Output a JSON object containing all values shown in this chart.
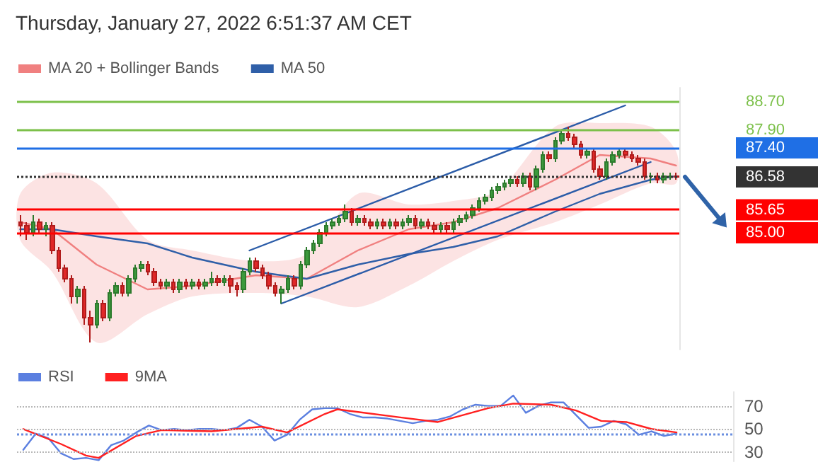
{
  "chart_data": [
    {
      "type": "candlestick",
      "title": "Thursday, January 27, 2022 6:51:37 AM CET",
      "categories": [
        null,
        null,
        null,
        null,
        null,
        null,
        null,
        null,
        null,
        null,
        null,
        null,
        null,
        null,
        null,
        null,
        null,
        null,
        null,
        null,
        null,
        null,
        null,
        null,
        null,
        null,
        null,
        null,
        null,
        null,
        null,
        null,
        null,
        null,
        null,
        null,
        null,
        null,
        null,
        null,
        null,
        null,
        null,
        null,
        null,
        null,
        null,
        null,
        null,
        null,
        null,
        null,
        null,
        null,
        null,
        null,
        null,
        null,
        null,
        null,
        null,
        null,
        null,
        null,
        null,
        null,
        null,
        null,
        null,
        null,
        null,
        null,
        null,
        null,
        null,
        null,
        null,
        null,
        null,
        null,
        null,
        null,
        null,
        null,
        null,
        null,
        null,
        null,
        null,
        null,
        null,
        null,
        null,
        null,
        null,
        null,
        null,
        null,
        null,
        null,
        null,
        null,
        null,
        null
      ],
      "ohlc": [
        [
          85.3,
          85.5,
          84.9,
          85.2
        ],
        [
          85.2,
          85.3,
          84.8,
          85.0
        ],
        [
          85.0,
          85.5,
          84.9,
          85.3
        ],
        [
          85.3,
          85.4,
          85.0,
          85.1
        ],
        [
          85.1,
          85.3,
          84.9,
          85.2
        ],
        [
          85.2,
          85.3,
          84.4,
          84.5
        ],
        [
          84.5,
          84.6,
          83.9,
          84.0
        ],
        [
          84.0,
          84.1,
          83.6,
          83.7
        ],
        [
          83.7,
          83.8,
          83.0,
          83.2
        ],
        [
          83.2,
          83.5,
          83.0,
          83.4
        ],
        [
          83.4,
          83.5,
          82.4,
          82.6
        ],
        [
          82.6,
          82.8,
          81.9,
          82.4
        ],
        [
          82.4,
          83.1,
          82.3,
          83.0
        ],
        [
          83.0,
          83.1,
          82.5,
          82.6
        ],
        [
          82.6,
          83.4,
          82.5,
          83.3
        ],
        [
          83.3,
          83.6,
          83.2,
          83.5
        ],
        [
          83.5,
          83.6,
          83.2,
          83.3
        ],
        [
          83.3,
          83.8,
          83.2,
          83.7
        ],
        [
          83.7,
          84.1,
          83.6,
          84.0
        ],
        [
          84.0,
          84.2,
          83.9,
          84.1
        ],
        [
          84.1,
          84.2,
          83.8,
          83.9
        ],
        [
          83.9,
          84.0,
          83.5,
          83.6
        ],
        [
          83.6,
          83.7,
          83.4,
          83.5
        ],
        [
          83.5,
          83.7,
          83.4,
          83.6
        ],
        [
          83.6,
          83.7,
          83.3,
          83.4
        ],
        [
          83.4,
          83.7,
          83.3,
          83.6
        ],
        [
          83.6,
          83.7,
          83.4,
          83.5
        ],
        [
          83.5,
          83.7,
          83.4,
          83.6
        ],
        [
          83.6,
          83.7,
          83.4,
          83.5
        ],
        [
          83.5,
          83.7,
          83.4,
          83.6
        ],
        [
          83.6,
          83.9,
          83.5,
          83.7
        ],
        [
          83.7,
          83.8,
          83.5,
          83.6
        ],
        [
          83.6,
          83.8,
          83.5,
          83.7
        ],
        [
          83.7,
          83.8,
          83.3,
          83.5
        ],
        [
          83.5,
          83.6,
          83.2,
          83.4
        ],
        [
          83.4,
          84.0,
          83.3,
          83.9
        ],
        [
          83.9,
          84.3,
          83.8,
          84.2
        ],
        [
          84.2,
          84.3,
          83.9,
          84.0
        ],
        [
          84.0,
          84.1,
          83.7,
          83.8
        ],
        [
          83.8,
          83.9,
          83.4,
          83.5
        ],
        [
          83.5,
          83.6,
          83.2,
          83.3
        ],
        [
          83.3,
          83.5,
          83.0,
          83.4
        ],
        [
          83.4,
          83.8,
          83.3,
          83.7
        ],
        [
          83.7,
          83.8,
          83.4,
          83.5
        ],
        [
          83.5,
          84.2,
          83.4,
          84.1
        ],
        [
          84.1,
          84.6,
          84.0,
          84.5
        ],
        [
          84.5,
          84.8,
          84.4,
          84.7
        ],
        [
          84.7,
          85.1,
          84.6,
          85.0
        ],
        [
          85.0,
          85.3,
          84.9,
          85.2
        ],
        [
          85.2,
          85.4,
          85.1,
          85.3
        ],
        [
          85.3,
          85.5,
          85.2,
          85.4
        ],
        [
          85.4,
          85.8,
          85.3,
          85.6
        ],
        [
          85.6,
          85.7,
          85.2,
          85.3
        ],
        [
          85.3,
          85.5,
          85.2,
          85.4
        ],
        [
          85.4,
          85.5,
          85.2,
          85.3
        ],
        [
          85.3,
          85.4,
          85.1,
          85.2
        ],
        [
          85.2,
          85.4,
          85.1,
          85.3
        ],
        [
          85.3,
          85.4,
          85.1,
          85.2
        ],
        [
          85.2,
          85.4,
          85.1,
          85.3
        ],
        [
          85.3,
          85.4,
          85.1,
          85.2
        ],
        [
          85.2,
          85.4,
          85.1,
          85.3
        ],
        [
          85.3,
          85.5,
          85.2,
          85.4
        ],
        [
          85.4,
          85.5,
          85.1,
          85.2
        ],
        [
          85.2,
          85.4,
          85.1,
          85.3
        ],
        [
          85.3,
          85.4,
          85.1,
          85.2
        ],
        [
          85.2,
          85.3,
          85.0,
          85.1
        ],
        [
          85.1,
          85.3,
          85.0,
          85.2
        ],
        [
          85.2,
          85.3,
          85.0,
          85.1
        ],
        [
          85.1,
          85.4,
          85.0,
          85.3
        ],
        [
          85.3,
          85.5,
          85.2,
          85.4
        ],
        [
          85.4,
          85.6,
          85.3,
          85.5
        ],
        [
          85.5,
          85.8,
          85.4,
          85.7
        ],
        [
          85.7,
          86.0,
          85.6,
          85.9
        ],
        [
          85.9,
          86.1,
          85.8,
          86.0
        ],
        [
          86.0,
          86.3,
          85.9,
          86.2
        ],
        [
          86.2,
          86.4,
          86.1,
          86.3
        ],
        [
          86.3,
          86.5,
          86.2,
          86.4
        ],
        [
          86.4,
          86.6,
          86.3,
          86.5
        ],
        [
          86.5,
          86.6,
          86.3,
          86.4
        ],
        [
          86.4,
          86.7,
          86.3,
          86.6
        ],
        [
          86.6,
          86.7,
          86.2,
          86.3
        ],
        [
          86.3,
          86.9,
          86.2,
          86.8
        ],
        [
          86.8,
          87.3,
          86.7,
          87.2
        ],
        [
          87.2,
          87.3,
          87.0,
          87.1
        ],
        [
          87.1,
          87.7,
          87.0,
          87.6
        ],
        [
          87.6,
          87.9,
          87.5,
          87.8
        ],
        [
          87.8,
          88.0,
          87.6,
          87.7
        ],
        [
          87.7,
          87.8,
          87.4,
          87.5
        ],
        [
          87.5,
          87.6,
          87.1,
          87.2
        ],
        [
          87.2,
          87.4,
          87.1,
          87.3
        ],
        [
          87.3,
          87.4,
          86.7,
          86.8
        ],
        [
          86.8,
          86.9,
          86.5,
          86.6
        ],
        [
          86.6,
          87.1,
          86.5,
          87.0
        ],
        [
          87.0,
          87.3,
          86.9,
          87.2
        ],
        [
          87.2,
          87.4,
          87.1,
          87.3
        ],
        [
          87.3,
          87.4,
          87.1,
          87.2
        ],
        [
          87.2,
          87.3,
          87.0,
          87.1
        ],
        [
          87.1,
          87.2,
          86.9,
          87.0
        ],
        [
          87.0,
          87.1,
          86.5,
          86.6
        ],
        [
          86.6,
          86.7,
          86.4,
          86.6
        ],
        [
          86.6,
          86.7,
          86.4,
          86.5
        ],
        [
          86.5,
          86.7,
          86.4,
          86.6
        ],
        [
          86.6,
          86.7,
          86.5,
          86.6
        ],
        [
          86.6,
          86.7,
          86.5,
          86.58
        ]
      ],
      "series": [
        {
          "type": "line",
          "name": "MA 20 + Bollinger Bands",
          "color": "#f08080",
          "values": [
            85.3,
            null,
            null,
            null,
            null,
            85.1,
            null,
            null,
            null,
            null,
            null,
            null,
            84.1,
            null,
            null,
            null,
            null,
            null,
            null,
            null,
            83.4,
            null,
            null,
            null,
            null,
            null,
            null,
            83.5,
            null,
            null,
            null,
            null,
            null,
            null,
            null,
            null,
            null,
            83.8,
            null,
            null,
            null,
            null,
            null,
            null,
            null,
            83.7,
            null,
            null,
            null,
            null,
            null,
            null,
            null,
            84.5,
            null,
            null,
            null,
            null,
            null,
            null,
            null,
            85.1,
            null,
            null,
            null,
            null,
            null,
            null,
            85.3,
            null,
            null,
            null,
            null,
            null,
            null,
            85.7,
            null,
            null,
            null,
            null,
            null,
            null,
            null,
            null,
            86.5,
            null,
            null,
            null,
            null,
            null,
            null,
            87.2,
            null,
            null,
            null,
            null,
            null,
            null,
            null,
            87.1,
            null,
            null,
            null,
            86.9
          ],
          "upper": [
            86.1,
            null,
            null,
            null,
            null,
            86.7,
            null,
            null,
            null,
            null,
            null,
            null,
            86.4,
            null,
            null,
            null,
            null,
            null,
            null,
            null,
            84.8,
            null,
            null,
            null,
            null,
            null,
            null,
            84.5,
            null,
            null,
            null,
            null,
            null,
            null,
            null,
            null,
            null,
            84.2,
            null,
            null,
            null,
            null,
            null,
            null,
            null,
            84.4,
            null,
            null,
            null,
            null,
            null,
            null,
            null,
            86.1,
            null,
            null,
            null,
            null,
            null,
            null,
            null,
            85.8,
            null,
            null,
            null,
            null,
            null,
            null,
            85.9,
            null,
            null,
            null,
            null,
            null,
            null,
            86.2,
            null,
            null,
            null,
            null,
            null,
            null,
            null,
            null,
            88.0,
            null,
            null,
            null,
            null,
            null,
            null,
            88.1,
            null,
            null,
            null,
            null,
            null,
            null,
            null,
            88.0,
            null,
            null,
            null,
            87.3
          ],
          "lower": [
            84.8,
            null,
            null,
            null,
            null,
            83.9,
            null,
            null,
            null,
            null,
            null,
            null,
            81.9,
            null,
            null,
            null,
            null,
            null,
            null,
            null,
            82.7,
            null,
            null,
            null,
            null,
            null,
            null,
            83.2,
            null,
            null,
            null,
            null,
            null,
            null,
            null,
            null,
            null,
            83.3,
            null,
            null,
            null,
            null,
            null,
            null,
            null,
            83.2,
            null,
            null,
            null,
            null,
            null,
            null,
            null,
            82.9,
            null,
            null,
            null,
            null,
            null,
            null,
            null,
            83.5,
            null,
            null,
            null,
            null,
            null,
            null,
            84.2,
            null,
            null,
            null,
            null,
            null,
            null,
            84.8,
            null,
            null,
            null,
            null,
            null,
            null,
            null,
            null,
            85.3,
            null,
            null,
            null,
            null,
            null,
            null,
            85.8,
            null,
            null,
            null,
            null,
            null,
            null,
            null,
            86.4,
            null,
            null,
            null,
            86.4
          ]
        },
        {
          "type": "line",
          "name": "MA 50",
          "color": "#2f5fa8",
          "values": [
            85.1,
            null,
            null,
            null,
            null,
            85.1,
            null,
            null,
            null,
            null,
            null,
            null,
            84.9,
            null,
            null,
            null,
            null,
            null,
            null,
            null,
            84.7,
            null,
            null,
            null,
            null,
            null,
            null,
            84.3,
            null,
            null,
            null,
            null,
            null,
            null,
            null,
            null,
            null,
            83.9,
            null,
            null,
            null,
            null,
            null,
            null,
            null,
            83.7,
            null,
            null,
            null,
            null,
            null,
            null,
            null,
            84.1,
            null,
            null,
            null,
            null,
            null,
            null,
            null,
            84.4,
            null,
            null,
            null,
            null,
            null,
            null,
            84.6,
            null,
            null,
            null,
            null,
            null,
            null,
            84.9,
            null,
            null,
            null,
            null,
            null,
            null,
            null,
            null,
            85.6,
            null,
            null,
            null,
            null,
            null,
            null,
            86.1,
            null,
            null,
            null,
            null,
            null,
            null,
            null,
            86.5,
            null,
            null,
            null,
            86.6
          ]
        },
        {
          "type": "line",
          "color": "#2b5ca8",
          "values": [
            null,
            null,
            null,
            null,
            null,
            null,
            null,
            null,
            null,
            null,
            null,
            null,
            null,
            null,
            null,
            null,
            null,
            null,
            null,
            null,
            null,
            null,
            null,
            null,
            null,
            null,
            null,
            null,
            null,
            null,
            null,
            null,
            null,
            null,
            null,
            null,
            84.5,
            null,
            null,
            null,
            null,
            null,
            null,
            null,
            null,
            null,
            null,
            null,
            null,
            null,
            null,
            null,
            null,
            null,
            null,
            null,
            null,
            null,
            null,
            null,
            null,
            null,
            null,
            null,
            null,
            null,
            null,
            null,
            null,
            null,
            null,
            null,
            null,
            null,
            null,
            null,
            null,
            null,
            null,
            null,
            null,
            null,
            null,
            null,
            null,
            null,
            null,
            null,
            null,
            null,
            null,
            null,
            null,
            null,
            null,
            88.6,
            null,
            null,
            null,
            null,
            null,
            null,
            null,
            null
          ]
        },
        {
          "type": "line",
          "color": "#2b5ca8",
          "values": [
            null,
            null,
            null,
            null,
            null,
            null,
            null,
            null,
            null,
            null,
            null,
            null,
            null,
            null,
            null,
            null,
            null,
            null,
            null,
            null,
            null,
            null,
            null,
            null,
            null,
            null,
            null,
            null,
            null,
            null,
            null,
            null,
            null,
            null,
            null,
            null,
            null,
            null,
            null,
            null,
            null,
            83.0,
            null,
            null,
            null,
            null,
            null,
            null,
            null,
            null,
            null,
            null,
            null,
            null,
            null,
            null,
            null,
            null,
            null,
            null,
            null,
            null,
            null,
            null,
            null,
            null,
            null,
            null,
            null,
            null,
            null,
            null,
            null,
            null,
            null,
            null,
            null,
            null,
            null,
            null,
            null,
            null,
            null,
            null,
            null,
            null,
            null,
            null,
            null,
            null,
            null,
            null,
            null,
            null,
            null,
            null,
            null,
            null,
            null,
            87.0,
            null,
            null,
            null,
            null
          ]
        }
      ],
      "ylim": [
        81.7,
        89.1
      ],
      "tick_labels": "y",
      "legend": "top left",
      "yticks": [
        {
          "value": 85.0,
          "label": "85.00"
        },
        {
          "value": 85.65,
          "label": "85.65"
        },
        {
          "value": 86.58,
          "label": "86.58"
        },
        {
          "value": 87.4,
          "label": "87.40"
        },
        {
          "value": 87.9,
          "label": "87.90"
        },
        {
          "value": 88.7,
          "label": "88.70"
        }
      ],
      "ref_lines": [
        {
          "axis": "y",
          "value": 88.7,
          "color": "#7cc04a"
        },
        {
          "axis": "y",
          "value": 87.9,
          "color": "#7cc04a"
        },
        {
          "axis": "y",
          "value": 87.4,
          "color": "#1f6fe5"
        },
        {
          "axis": "y",
          "value": 86.58,
          "color": "#333333",
          "line_style": "dotted"
        },
        {
          "axis": "y",
          "value": 85.65,
          "color": "#ff0000"
        },
        {
          "axis": "y",
          "value": 85.0,
          "color": "#ff0000"
        }
      ]
    },
    {
      "type": "line",
      "categories": [
        null,
        null,
        null,
        null,
        null,
        null,
        null,
        null,
        null,
        null,
        null,
        null,
        null,
        null,
        null,
        null,
        null,
        null,
        null,
        null,
        null,
        null,
        null,
        null,
        null,
        null,
        null,
        null,
        null,
        null,
        null,
        null,
        null,
        null,
        null,
        null,
        null,
        null,
        null,
        null,
        null,
        null,
        null,
        null,
        null,
        null,
        null,
        null,
        null,
        null,
        null,
        null,
        null,
        null,
        null,
        null,
        null
      ],
      "series": [
        {
          "name": "RSI",
          "color": "#5b7fe0",
          "values": [
            32,
            46,
            42,
            29,
            24,
            25,
            23,
            36,
            40,
            47,
            53,
            49,
            50,
            49,
            50,
            50,
            49,
            51,
            58,
            52,
            40,
            45,
            58,
            67,
            68,
            68,
            63,
            60,
            60,
            59,
            57,
            55,
            57,
            58,
            61,
            67,
            71,
            70,
            70,
            79,
            64,
            70,
            73,
            73,
            62,
            51,
            52,
            57,
            54,
            45,
            48,
            44,
            46,
            null,
            null,
            null,
            null
          ]
        },
        {
          "name": "9MA",
          "color": "#ff2020",
          "values": [
            50,
            null,
            null,
            37,
            null,
            27,
            25,
            null,
            null,
            44,
            null,
            49,
            null,
            null,
            null,
            48,
            null,
            null,
            null,
            52,
            null,
            47,
            null,
            null,
            63,
            67,
            null,
            null,
            null,
            null,
            60,
            null,
            null,
            56,
            null,
            null,
            null,
            68,
            null,
            72,
            null,
            null,
            71,
            null,
            66,
            null,
            57,
            null,
            56,
            null,
            50,
            null,
            47,
            null,
            null,
            null,
            null
          ]
        }
      ],
      "ylim": [
        22,
        82
      ],
      "yticks": [
        30,
        50,
        70
      ],
      "grid": "y",
      "legend": "top left",
      "tick_labels": "y",
      "ref_lines": [
        {
          "axis": "y",
          "value": 46,
          "color": "#6b8fe0",
          "line_style": "dotted"
        }
      ]
    }
  ]
}
